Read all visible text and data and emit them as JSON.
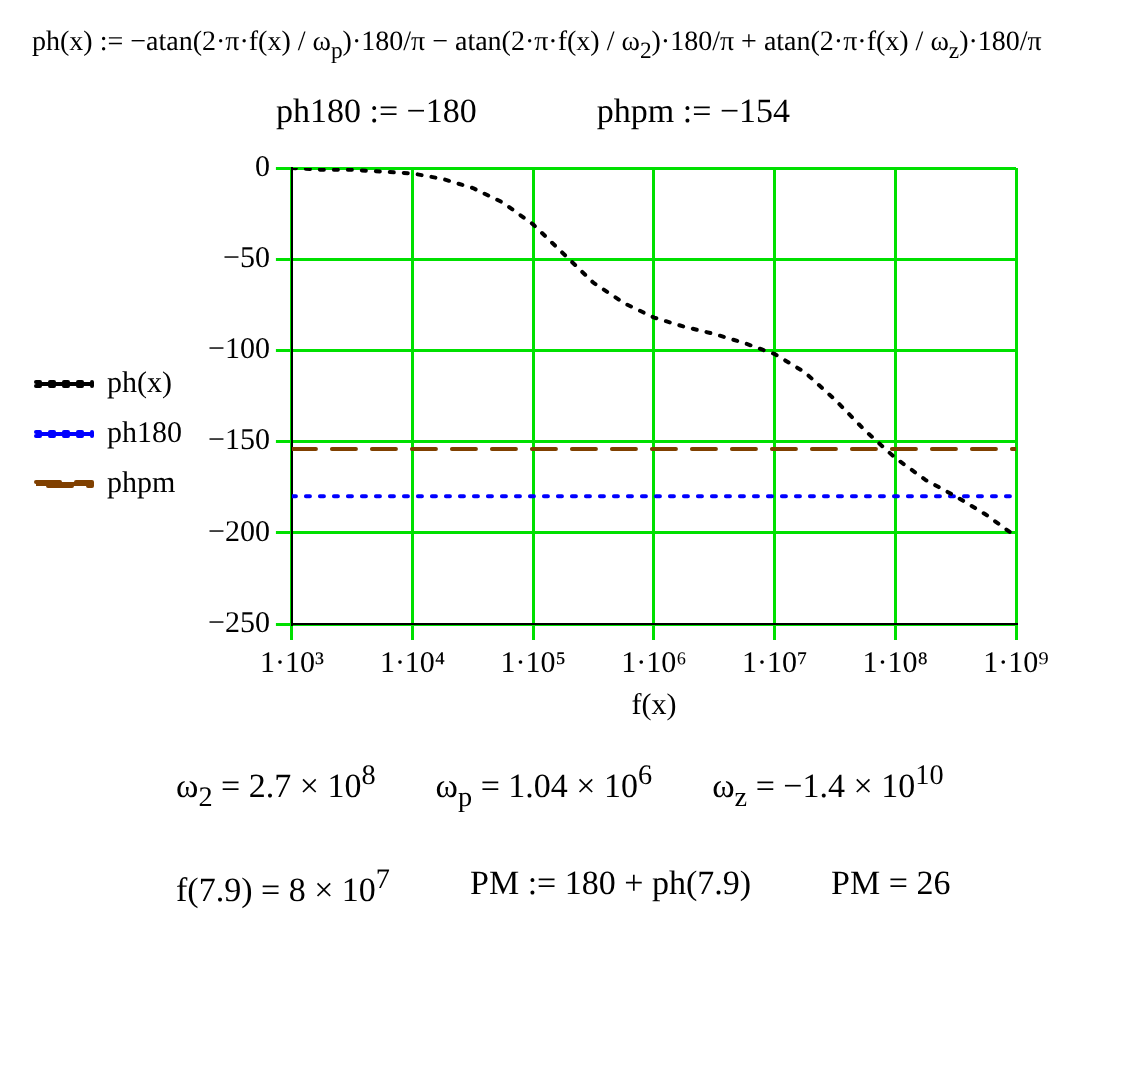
{
  "chart_data": {
    "type": "line",
    "xlabel": "f(x)",
    "log": "x",
    "grid": true,
    "legend": "left",
    "marker": "none",
    "annotations": [
      "ph(x) := −atan(2·π·f(x) / ω$_{p}$)·180/π − atan(2·π·f(x) / ω$_{2}$)·180/π + atan(2·π·f(x) / ω$_{z}$)·180/π",
      "ph180 := −180",
      "phpm := −154",
      "ω$_{2}$ = 2.7 × 10$^{8}$",
      "ω$_{p}$ = 1.04 × 10$^{6}$",
      "ω$_{z}$ = −1.4 × 10$^{10}$",
      "f(7.9) = 8 × 10$^{7}$",
      "PM := 180 + ph(7.9)",
      "PM = 26"
    ],
    "xlim": [
      1000,
      1000000000
    ],
    "xticks": [
      {
        "value": 1000,
        "label": "1·10³"
      },
      {
        "value": 10000,
        "label": "1·10⁴"
      },
      {
        "value": 100000,
        "label": "1·10⁵"
      },
      {
        "value": 1000000,
        "label": "1·10⁶"
      },
      {
        "value": 10000000,
        "label": "1·10⁷"
      },
      {
        "value": 100000000,
        "label": "1·10⁸"
      },
      {
        "value": 1000000000,
        "label": "1·10⁹"
      }
    ],
    "ylim": [
      -250,
      0
    ],
    "yticks": [
      -250,
      -200,
      -150,
      -100,
      -50,
      0
    ],
    "series": [
      {
        "name": "ph(x)",
        "color": "#000000",
        "line_style": "dotted",
        "x": [
          1000,
          1778,
          3162,
          5623,
          10000,
          17780,
          31620,
          56230,
          100000,
          177800,
          316200,
          562300,
          1000000,
          1778000,
          3162000,
          5623000,
          10000000,
          17780000,
          31620000,
          56230000,
          100000000,
          177800000,
          316200000,
          562300000,
          1000000000
        ],
        "values": [
          0,
          -1,
          -1,
          -2,
          -3,
          -6,
          -11,
          -19,
          -31,
          -47,
          -63,
          -74,
          -82,
          -87,
          -91,
          -96,
          -102,
          -112,
          -127,
          -144,
          -159,
          -171,
          -180,
          -190,
          -202
        ]
      },
      {
        "name": "ph180",
        "color": "#0000ff",
        "line_style": "dotted",
        "x": [
          1000,
          1000000000
        ],
        "values": [
          -180,
          -180
        ]
      },
      {
        "name": "phpm",
        "color": "#804000",
        "line_style": "dashed",
        "x": [
          1000,
          1000000000
        ],
        "values": [
          -154,
          -154
        ]
      }
    ]
  }
}
